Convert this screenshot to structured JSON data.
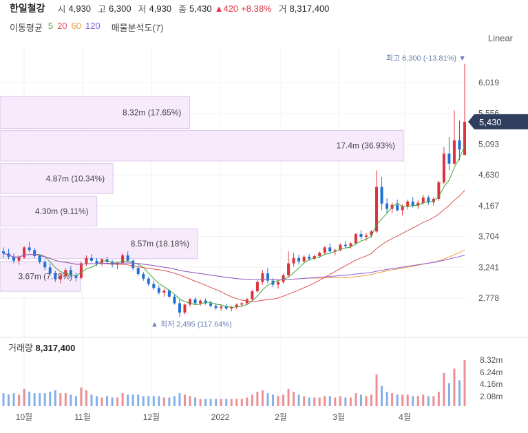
{
  "header": {
    "stock_name": "한일철강",
    "open_label": "시",
    "open_value": "4,930",
    "high_label": "고",
    "high_value": "6,300",
    "low_label": "저",
    "low_value": "4,930",
    "close_label": "종",
    "close_value": "5,430",
    "change_value": "▲420",
    "change_pct": "+8.38%",
    "volume_label": "거",
    "volume_value": "8,317,400"
  },
  "ma_legend": {
    "title": "이동평균",
    "items": [
      {
        "label": "5",
        "color": "#3aa53a"
      },
      {
        "label": "20",
        "color": "#e05050"
      },
      {
        "label": "60",
        "color": "#f09a3e"
      },
      {
        "label": "120",
        "color": "#8a5cd6"
      }
    ],
    "volume_profile_label": "매물분석도(7)"
  },
  "scale_button": "Linear",
  "price_badge": "5,430",
  "annotations": {
    "high": "최고 6,300 (-13.81%) ▼",
    "low": "▲ 최저 2,495 (117.64%)"
  },
  "volume_title": {
    "label": "거래량",
    "value": "8,317,400"
  },
  "colors": {
    "up": "#e0323c",
    "down": "#1f6fd8",
    "profile_fill": "#f6eafb",
    "profile_stroke": "#dcc7ea",
    "badge": "#2f3e5c",
    "annotation": "#6b7fb2"
  },
  "chart_data": {
    "type": "candlestick",
    "price_axis_ticks": [
      "6,019",
      "5,556",
      "5,093",
      "4,630",
      "4,167",
      "3,704",
      "3,241",
      "2,778"
    ],
    "volume_axis_ticks": [
      "8.32m",
      "6.24m",
      "4.16m",
      "2.08m"
    ],
    "x_tick_labels": [
      "10월",
      "11월",
      "12월",
      "2022",
      "2월",
      "3월",
      "4월"
    ],
    "ylim": [
      2495,
      6300
    ],
    "volume_profile": [
      {
        "label": "8.32m (17.65%)",
        "price_low": 5330,
        "price_high": 5810,
        "fraction": 0.47
      },
      {
        "label": "17.4m (36.93%)",
        "price_low": 4840,
        "price_high": 5300,
        "fraction": 1.0
      },
      {
        "label": "4.87m (10.34%)",
        "price_low": 4350,
        "price_high": 4800,
        "fraction": 0.28
      },
      {
        "label": "4.30m (9.11%)",
        "price_low": 3860,
        "price_high": 4310,
        "fraction": 0.24
      },
      {
        "label": "8.57m (18.18%)",
        "price_low": 3370,
        "price_high": 3820,
        "fraction": 0.49
      },
      {
        "label": "3.67m (7.78%)",
        "price_low": 2880,
        "price_high": 3330,
        "fraction": 0.2
      }
    ],
    "candles": [
      [
        3480,
        3540,
        3380,
        3450,
        0.9
      ],
      [
        3450,
        3520,
        3360,
        3400,
        0.8
      ],
      [
        3400,
        3450,
        3300,
        3340,
        0.9
      ],
      [
        3340,
        3420,
        3280,
        3390,
        0.8
      ],
      [
        3390,
        3560,
        3370,
        3540,
        1.2
      ],
      [
        3540,
        3620,
        3470,
        3500,
        1.0
      ],
      [
        3500,
        3530,
        3380,
        3410,
        0.9
      ],
      [
        3410,
        3440,
        3290,
        3320,
        0.9
      ],
      [
        3320,
        3360,
        3200,
        3240,
        0.9
      ],
      [
        3240,
        3300,
        3120,
        3150,
        1.0
      ],
      [
        3150,
        3190,
        3020,
        3060,
        1.1
      ],
      [
        3060,
        3150,
        3000,
        3110,
        0.9
      ],
      [
        3110,
        3230,
        3080,
        3200,
        0.9
      ],
      [
        3200,
        3260,
        3090,
        3120,
        0.8
      ],
      [
        3120,
        3160,
        3030,
        3080,
        0.7
      ],
      [
        3080,
        3330,
        3060,
        3300,
        1.3
      ],
      [
        3300,
        3420,
        3260,
        3380,
        1.1
      ],
      [
        3380,
        3440,
        3310,
        3340,
        0.8
      ],
      [
        3340,
        3380,
        3260,
        3300,
        0.7
      ],
      [
        3300,
        3380,
        3260,
        3360,
        0.6
      ],
      [
        3360,
        3400,
        3290,
        3320,
        0.7
      ],
      [
        3320,
        3350,
        3240,
        3280,
        0.6
      ],
      [
        3280,
        3330,
        3210,
        3300,
        0.6
      ],
      [
        3300,
        3450,
        3280,
        3420,
        0.9
      ],
      [
        3420,
        3480,
        3320,
        3340,
        0.8
      ],
      [
        3340,
        3360,
        3200,
        3230,
        0.8
      ],
      [
        3230,
        3260,
        3110,
        3140,
        0.8
      ],
      [
        3140,
        3170,
        3040,
        3070,
        0.7
      ],
      [
        3070,
        3100,
        2960,
        2990,
        0.7
      ],
      [
        2990,
        3040,
        2900,
        2930,
        0.7
      ],
      [
        2930,
        2970,
        2830,
        2860,
        0.7
      ],
      [
        2860,
        2920,
        2800,
        2890,
        0.6
      ],
      [
        2890,
        2910,
        2780,
        2800,
        0.6
      ],
      [
        2800,
        2830,
        2680,
        2700,
        0.7
      ],
      [
        2700,
        2760,
        2495,
        2560,
        0.9
      ],
      [
        2560,
        2700,
        2530,
        2680,
        0.8
      ],
      [
        2680,
        2780,
        2650,
        2760,
        0.7
      ],
      [
        2760,
        2790,
        2680,
        2700,
        0.6
      ],
      [
        2700,
        2760,
        2660,
        2740,
        0.5
      ],
      [
        2740,
        2770,
        2680,
        2700,
        0.5
      ],
      [
        2700,
        2740,
        2640,
        2660,
        0.5
      ],
      [
        2660,
        2700,
        2600,
        2630,
        0.5
      ],
      [
        2630,
        2680,
        2590,
        2650,
        0.5
      ],
      [
        2650,
        2690,
        2600,
        2620,
        0.5
      ],
      [
        2620,
        2660,
        2580,
        2640,
        0.5
      ],
      [
        2640,
        2700,
        2610,
        2680,
        0.5
      ],
      [
        2680,
        2720,
        2640,
        2700,
        0.5
      ],
      [
        2700,
        2780,
        2680,
        2760,
        0.6
      ],
      [
        2760,
        2900,
        2740,
        2880,
        0.8
      ],
      [
        2880,
        3050,
        2860,
        3020,
        1.0
      ],
      [
        3020,
        3200,
        2980,
        3150,
        1.1
      ],
      [
        3150,
        3230,
        3000,
        3040,
        0.9
      ],
      [
        3040,
        3080,
        2940,
        2980,
        0.8
      ],
      [
        2980,
        3040,
        2920,
        3020,
        0.7
      ],
      [
        3020,
        3150,
        2990,
        3120,
        0.8
      ],
      [
        3120,
        3480,
        3100,
        3300,
        1.2
      ],
      [
        3300,
        3460,
        3250,
        3380,
        1.0
      ],
      [
        3380,
        3430,
        3280,
        3330,
        0.8
      ],
      [
        3330,
        3420,
        3300,
        3400,
        0.7
      ],
      [
        3400,
        3440,
        3340,
        3370,
        0.6
      ],
      [
        3370,
        3430,
        3350,
        3410,
        0.6
      ],
      [
        3410,
        3480,
        3380,
        3460,
        0.6
      ],
      [
        3460,
        3560,
        3440,
        3540,
        0.7
      ],
      [
        3540,
        3600,
        3460,
        3480,
        0.7
      ],
      [
        3480,
        3520,
        3420,
        3500,
        0.6
      ],
      [
        3500,
        3600,
        3480,
        3580,
        0.7
      ],
      [
        3580,
        3640,
        3530,
        3560,
        0.6
      ],
      [
        3560,
        3620,
        3520,
        3600,
        0.6
      ],
      [
        3600,
        3760,
        3580,
        3740,
        0.9
      ],
      [
        3740,
        3800,
        3660,
        3700,
        0.8
      ],
      [
        3700,
        3760,
        3640,
        3720,
        0.7
      ],
      [
        3720,
        3800,
        3690,
        3780,
        0.8
      ],
      [
        3780,
        4700,
        3760,
        4450,
        2.2
      ],
      [
        4450,
        4600,
        4100,
        4200,
        1.4
      ],
      [
        4200,
        4280,
        4050,
        4120,
        1.0
      ],
      [
        4120,
        4220,
        4050,
        4180,
        0.9
      ],
      [
        4180,
        4260,
        4080,
        4100,
        0.8
      ],
      [
        4100,
        4190,
        4020,
        4160,
        0.8
      ],
      [
        4160,
        4260,
        4110,
        4230,
        0.8
      ],
      [
        4230,
        4300,
        4140,
        4170,
        0.7
      ],
      [
        4170,
        4250,
        4120,
        4210,
        0.7
      ],
      [
        4210,
        4330,
        4180,
        4290,
        0.8
      ],
      [
        4290,
        4320,
        4180,
        4220,
        0.7
      ],
      [
        4220,
        4300,
        4170,
        4270,
        0.7
      ],
      [
        4270,
        4540,
        4240,
        4520,
        1.0
      ],
      [
        4520,
        5050,
        4490,
        4950,
        2.3
      ],
      [
        4950,
        5200,
        4700,
        4800,
        1.6
      ],
      [
        4800,
        5600,
        4780,
        5150,
        2.6
      ],
      [
        5150,
        5450,
        4850,
        5010,
        1.8
      ],
      [
        4930,
        6300,
        4930,
        5430,
        3.2
      ]
    ]
  }
}
